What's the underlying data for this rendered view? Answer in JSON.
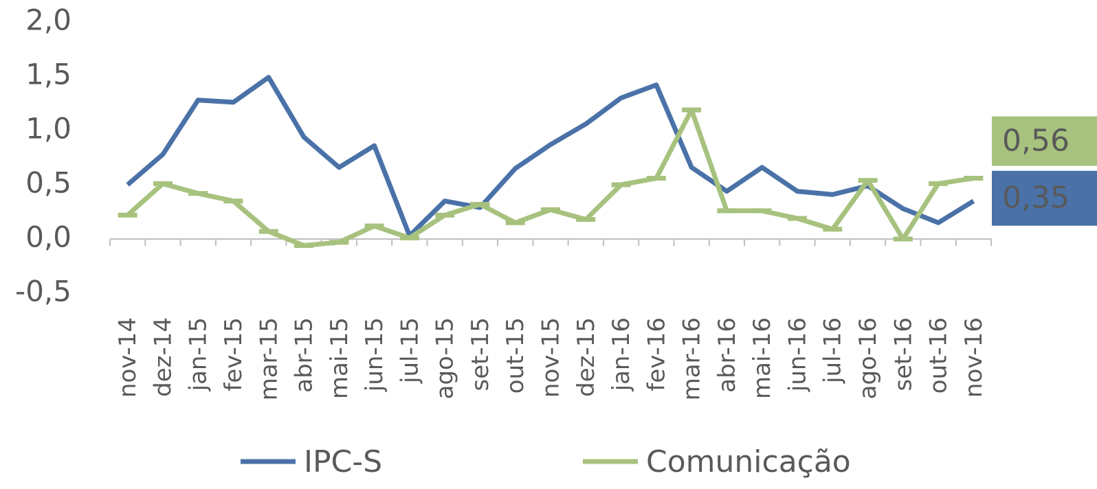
{
  "chart_data": {
    "type": "line",
    "categories": [
      "nov-14",
      "dez-14",
      "jan-15",
      "fev-15",
      "mar-15",
      "abr-15",
      "mai-15",
      "jun-15",
      "jul-15",
      "ago-15",
      "set-15",
      "out-15",
      "nov-15",
      "dez-15",
      "jan-16",
      "fev-16",
      "mar-16",
      "abr-16",
      "mai-16",
      "jun-16",
      "jul-16",
      "ago-16",
      "set-16",
      "out-16",
      "nov-16"
    ],
    "series": [
      {
        "name": "IPC-S",
        "color": "#4a72a8",
        "values": [
          0.5,
          0.78,
          1.28,
          1.26,
          1.49,
          0.94,
          0.66,
          0.86,
          0.03,
          0.35,
          0.29,
          0.65,
          0.87,
          1.06,
          1.3,
          1.42,
          0.66,
          0.44,
          0.66,
          0.44,
          0.41,
          0.49,
          0.28,
          0.15,
          0.35
        ],
        "value_labels": [
          null,
          null,
          null,
          null,
          null,
          null,
          null,
          null,
          null,
          null,
          null,
          null,
          null,
          null,
          null,
          null,
          null,
          null,
          null,
          null,
          null,
          null,
          null,
          null,
          "0,35"
        ]
      },
      {
        "name": "Comunicação",
        "color": "#a7c27e",
        "values": [
          0.22,
          0.51,
          0.42,
          0.35,
          0.07,
          -0.06,
          -0.03,
          0.12,
          0.01,
          0.22,
          0.32,
          0.15,
          0.27,
          0.18,
          0.5,
          0.56,
          1.19,
          0.26,
          0.26,
          0.19,
          0.09,
          0.54,
          0.0,
          0.51,
          0.56
        ],
        "value_labels": [
          null,
          null,
          null,
          null,
          null,
          null,
          null,
          null,
          null,
          null,
          null,
          null,
          null,
          null,
          null,
          null,
          null,
          null,
          null,
          null,
          null,
          null,
          null,
          null,
          "0,56"
        ]
      }
    ],
    "ylim": [
      -0.5,
      2.0
    ],
    "yticks": [
      {
        "value": -0.5,
        "label": "-0,5"
      },
      {
        "value": 0,
        "label": "0,0"
      },
      {
        "value": 0.5,
        "label": "0,5"
      },
      {
        "value": 1.0,
        "label": "1,0"
      },
      {
        "value": 1.5,
        "label": "1,5"
      },
      {
        "value": 2.0,
        "label": "2,0"
      }
    ],
    "grid": false,
    "legend": "bottom"
  }
}
